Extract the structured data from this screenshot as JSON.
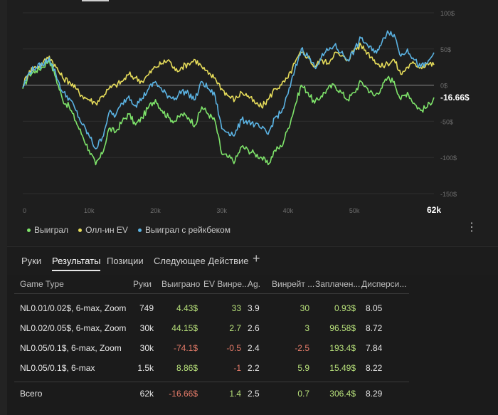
{
  "chart_data": {
    "type": "line",
    "xlabel": "",
    "ylabel": "",
    "x_ticks": [
      "0",
      "10k",
      "20k",
      "30k",
      "40k",
      "50k",
      "62k"
    ],
    "x_tick_values": [
      0,
      10000,
      20000,
      30000,
      40000,
      50000,
      62000
    ],
    "y_ticks": [
      "100$",
      "50$",
      "0$",
      "-50$",
      "-100$",
      "-150$"
    ],
    "y_tick_values": [
      100,
      50,
      0,
      -50,
      -100,
      -150
    ],
    "xlim": [
      0,
      62000
    ],
    "ylim": [
      -150,
      100
    ],
    "end_label": "-16.66$",
    "series": [
      {
        "name": "Выиграл",
        "color": "#7ee36a",
        "x": [
          0,
          1000,
          2000,
          3000,
          4000,
          5000,
          6000,
          7000,
          8000,
          9000,
          10000,
          11000,
          12000,
          13000,
          14000,
          15000,
          16000,
          17000,
          18000,
          19000,
          20000,
          21000,
          22000,
          23000,
          24000,
          25000,
          26000,
          27000,
          28000,
          29000,
          30000,
          31000,
          32000,
          33000,
          34000,
          35000,
          36000,
          37000,
          38000,
          39000,
          40000,
          41000,
          42000,
          43000,
          44000,
          45000,
          46000,
          47000,
          48000,
          49000,
          50000,
          51000,
          52000,
          53000,
          54000,
          55000,
          56000,
          57000,
          58000,
          59000,
          60000,
          61000,
          62000
        ],
        "values": [
          -5,
          15,
          20,
          25,
          35,
          10,
          -20,
          -30,
          -50,
          -70,
          -90,
          -110,
          -95,
          -60,
          -65,
          -50,
          -40,
          -55,
          -45,
          -30,
          -20,
          -35,
          -45,
          -50,
          -40,
          -45,
          -55,
          -30,
          -40,
          -50,
          -95,
          -100,
          -105,
          -85,
          -90,
          -95,
          -100,
          -110,
          -90,
          -85,
          -60,
          -30,
          0,
          -10,
          -25,
          -15,
          -5,
          0,
          -10,
          -20,
          -10,
          5,
          -5,
          -15,
          -5,
          10,
          5,
          -20,
          -10,
          -25,
          -35,
          -30,
          -17
        ]
      },
      {
        "name": "Олл-ин EV",
        "color": "#e6dc5a",
        "x": [
          0,
          1000,
          2000,
          3000,
          4000,
          5000,
          6000,
          7000,
          8000,
          9000,
          10000,
          11000,
          12000,
          13000,
          14000,
          15000,
          16000,
          17000,
          18000,
          19000,
          20000,
          21000,
          22000,
          23000,
          24000,
          25000,
          26000,
          27000,
          28000,
          29000,
          30000,
          31000,
          32000,
          33000,
          34000,
          35000,
          36000,
          37000,
          38000,
          39000,
          40000,
          41000,
          42000,
          43000,
          44000,
          45000,
          46000,
          47000,
          48000,
          49000,
          50000,
          51000,
          52000,
          53000,
          54000,
          55000,
          56000,
          57000,
          58000,
          59000,
          60000,
          61000,
          62000
        ],
        "values": [
          0,
          20,
          25,
          30,
          40,
          25,
          10,
          5,
          -5,
          -15,
          -20,
          -25,
          -15,
          -5,
          0,
          5,
          15,
          10,
          5,
          15,
          25,
          30,
          35,
          20,
          25,
          30,
          35,
          25,
          15,
          10,
          -5,
          -15,
          -20,
          -10,
          -15,
          -25,
          -30,
          -20,
          -5,
          0,
          10,
          30,
          45,
          40,
          25,
          35,
          30,
          45,
          40,
          35,
          50,
          55,
          45,
          35,
          25,
          30,
          35,
          15,
          25,
          30,
          25,
          30,
          28
        ]
      },
      {
        "name": "Выиграл с рейкбеком",
        "color": "#5bb3e3",
        "x": [
          0,
          1000,
          2000,
          3000,
          4000,
          5000,
          6000,
          7000,
          8000,
          9000,
          10000,
          11000,
          12000,
          13000,
          14000,
          15000,
          16000,
          17000,
          18000,
          19000,
          20000,
          21000,
          22000,
          23000,
          24000,
          25000,
          26000,
          27000,
          28000,
          29000,
          30000,
          31000,
          32000,
          33000,
          34000,
          35000,
          36000,
          37000,
          38000,
          39000,
          40000,
          41000,
          42000,
          43000,
          44000,
          45000,
          46000,
          47000,
          48000,
          49000,
          50000,
          51000,
          52000,
          53000,
          54000,
          55000,
          56000,
          57000,
          58000,
          59000,
          60000,
          61000,
          62000
        ],
        "values": [
          -3,
          18,
          25,
          28,
          38,
          15,
          -10,
          -18,
          -35,
          -55,
          -70,
          -88,
          -72,
          -38,
          -42,
          -25,
          -15,
          -28,
          -18,
          -5,
          5,
          -8,
          -15,
          -18,
          -8,
          -12,
          -20,
          5,
          -5,
          -15,
          -60,
          -65,
          -68,
          -48,
          -50,
          -55,
          -60,
          -68,
          -45,
          -38,
          -12,
          20,
          50,
          40,
          25,
          38,
          48,
          55,
          45,
          35,
          48,
          65,
          55,
          45,
          55,
          75,
          70,
          40,
          50,
          35,
          25,
          30,
          45
        ]
      }
    ]
  },
  "legend": [
    "Выиграл",
    "Олл-ин EV",
    "Выиграл с рейкбеком"
  ],
  "tabs": [
    "Руки",
    "Результаты",
    "Позиции",
    "Следующее Действие"
  ],
  "tab_add": "+",
  "kebab": "⋮",
  "table": {
    "headers": [
      "Game Type",
      "Руки",
      "Выиграно",
      "EV Винре...",
      "Ag.",
      "Винрейт ...",
      "Заплачен...",
      "Дисперси..."
    ],
    "rows": [
      [
        "NL0.01/0.02$, 6-max, Zoom",
        "749",
        "4.43$",
        "33",
        "3.9",
        "30",
        "0.93$",
        "8.05"
      ],
      [
        "NL0.02/0.05$, 6-max, Zoom",
        "30k",
        "44.15$",
        "2.7",
        "2.6",
        "3",
        "96.58$",
        "8.72"
      ],
      [
        "NL0.05/0.1$, 6-max, Zoom",
        "30k",
        "-74.1$",
        "-0.5",
        "2.4",
        "-2.5",
        "193.4$",
        "7.84"
      ],
      [
        "NL0.05/0.1$, 6-max",
        "1.5k",
        "8.86$",
        "-1",
        "2.2",
        "5.9",
        "15.49$",
        "8.22"
      ]
    ],
    "total": [
      "Всего",
      "62k",
      "-16.66$",
      "1.4",
      "2.5",
      "0.7",
      "306.4$",
      "8.29"
    ]
  },
  "colors": {
    "positive": "#b7e07a",
    "negative": "#e57b69"
  }
}
